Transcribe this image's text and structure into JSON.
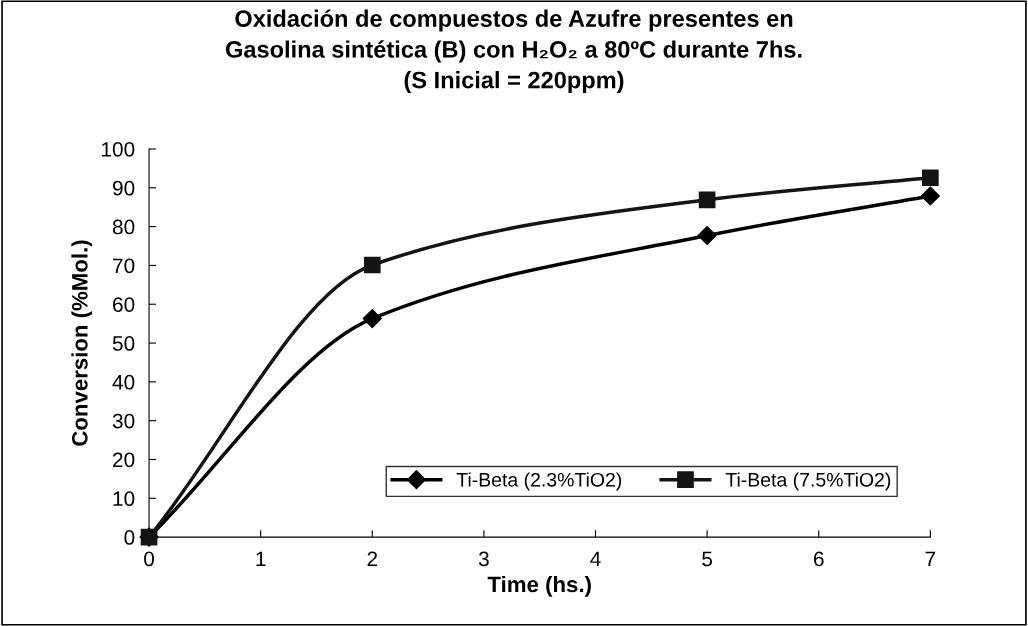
{
  "chart_data": {
    "type": "line",
    "title": "Oxidación de compuestos de Azufre presentes en\nGasolina sintética (B) con H₂O₂ a 80ºC durante 7hs.\n(S Inicial = 220ppm)",
    "xlabel": "Time (hs.)",
    "ylabel": "Conversion (%Mol.)",
    "x": [
      0,
      2,
      5,
      7
    ],
    "series": [
      {
        "name": "Ti-Beta (2.3%TiO2)",
        "color": "#000000",
        "marker": "diamond",
        "values": [
          0,
          56.3,
          77.7,
          87.9
        ]
      },
      {
        "name": "Ti-Beta (7.5%TiO2)",
        "color": "#141414",
        "marker": "square",
        "values": [
          0,
          70.1,
          86.9,
          92.6
        ]
      }
    ],
    "xlim": [
      0,
      7
    ],
    "xticks": [
      0,
      1,
      2,
      3,
      4,
      5,
      6,
      7
    ],
    "ylim": [
      0,
      100
    ],
    "yticks": [
      0,
      10,
      20,
      30,
      40,
      50,
      60,
      70,
      80,
      90,
      100
    ],
    "grid": false,
    "legend": "bottom right",
    "line_style": "solid"
  }
}
